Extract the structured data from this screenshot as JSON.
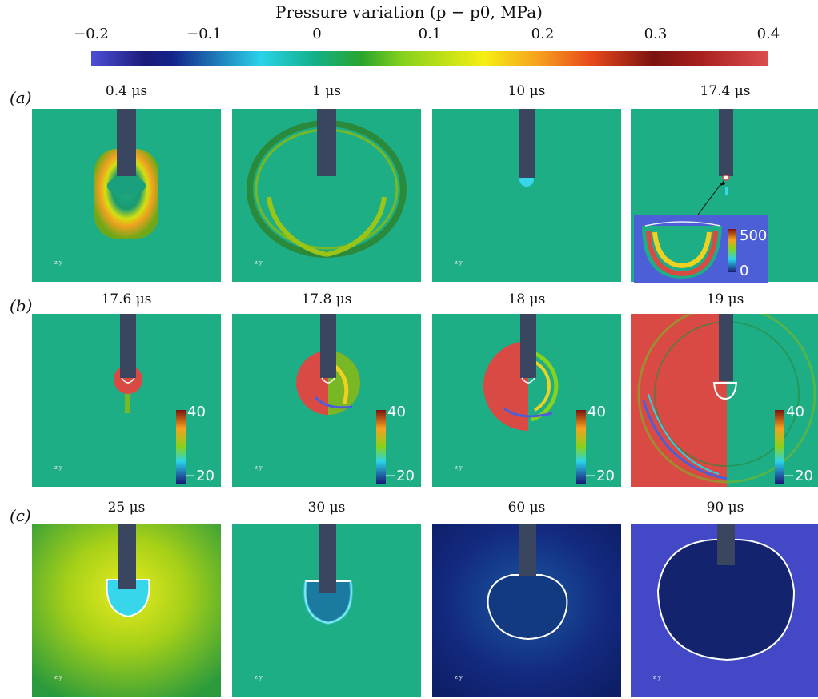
{
  "colorbar": {
    "title": "Pressure variation (p − p0, MPa)",
    "ticks": [
      "−0.2",
      "−0.1",
      "0",
      "0.1",
      "0.2",
      "0.3",
      "0.4"
    ]
  },
  "rows": [
    {
      "label": "(a)",
      "times": [
        "0.4 μs",
        "1 μs",
        "10 μs",
        "17.4 μs"
      ]
    },
    {
      "label": "(b)",
      "times": [
        "17.6 μs",
        "17.8 μs",
        "18 μs",
        "19 μs"
      ]
    },
    {
      "label": "(c)",
      "times": [
        "25 μs",
        "30 μs",
        "60 μs",
        "90 μs"
      ]
    }
  ],
  "inset": {
    "max": "500",
    "min": "0"
  },
  "local_colorbar": {
    "max": "40",
    "min": "−20"
  },
  "colors": {
    "background_zero": "#1dae86",
    "saturated_red": "#d94a45",
    "needle": "#3a4560",
    "deep_negative": "#12236e"
  }
}
